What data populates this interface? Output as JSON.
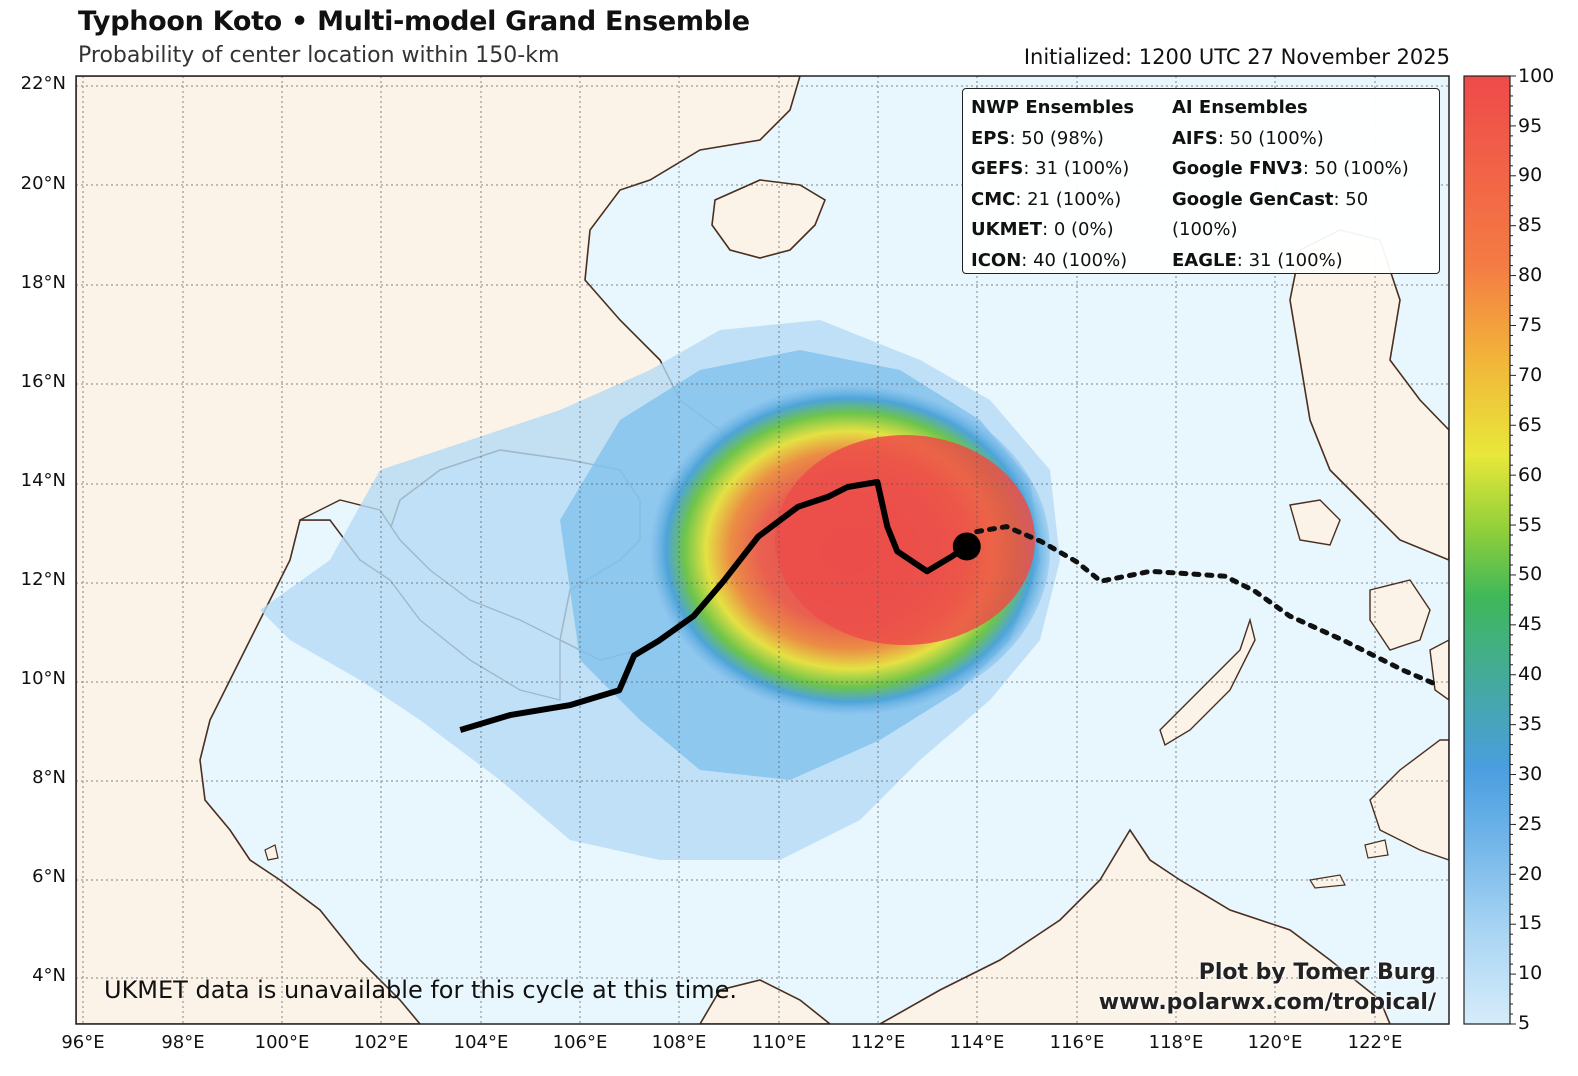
{
  "header": {
    "title": "Typhoon Koto • Multi-model Grand Ensemble",
    "subtitle": "Probability of center location within 150-km",
    "initialized": "Initialized: 1200 UTC 27 November 2025"
  },
  "map": {
    "lon_range": [
      96,
      123.5
    ],
    "lat_range": [
      3,
      22
    ],
    "lat_ticks": [
      "4°N",
      "6°N",
      "8°N",
      "10°N",
      "12°N",
      "14°N",
      "16°N",
      "18°N",
      "20°N",
      "22°N"
    ],
    "lon_ticks": [
      "96°E",
      "98°E",
      "100°E",
      "102°E",
      "104°E",
      "106°E",
      "108°E",
      "110°E",
      "112°E",
      "114°E",
      "116°E",
      "118°E",
      "120°E",
      "122°E"
    ],
    "ocean_color": "#e8f6fd",
    "land_color": "#fbf3e8",
    "coast_color": "#4a2e1f",
    "storm_position": {
      "lon": 113.8,
      "lat": 12.7
    },
    "mean_track": [
      {
        "lon": 113.8,
        "lat": 12.7
      },
      {
        "lon": 113.5,
        "lat": 12.5
      },
      {
        "lon": 113.0,
        "lat": 12.2
      },
      {
        "lon": 112.4,
        "lat": 12.6
      },
      {
        "lon": 112.2,
        "lat": 13.1
      },
      {
        "lon": 112.0,
        "lat": 14.0
      },
      {
        "lon": 111.4,
        "lat": 13.9
      },
      {
        "lon": 111.0,
        "lat": 13.7
      },
      {
        "lon": 110.4,
        "lat": 13.5
      },
      {
        "lon": 110.0,
        "lat": 13.2
      },
      {
        "lon": 109.6,
        "lat": 12.9
      },
      {
        "lon": 108.9,
        "lat": 12.0
      },
      {
        "lon": 108.3,
        "lat": 11.3
      },
      {
        "lon": 107.6,
        "lat": 10.8
      },
      {
        "lon": 107.1,
        "lat": 10.5
      },
      {
        "lon": 106.8,
        "lat": 9.8
      },
      {
        "lon": 105.8,
        "lat": 9.5
      },
      {
        "lon": 104.6,
        "lat": 9.3
      },
      {
        "lon": 103.6,
        "lat": 9.0
      }
    ],
    "past_track": [
      {
        "lon": 114.0,
        "lat": 13.0
      },
      {
        "lon": 114.6,
        "lat": 13.1
      },
      {
        "lon": 115.3,
        "lat": 12.8
      },
      {
        "lon": 116.0,
        "lat": 12.4
      },
      {
        "lon": 116.5,
        "lat": 12.0
      },
      {
        "lon": 117.5,
        "lat": 12.2
      },
      {
        "lon": 119.0,
        "lat": 12.1
      },
      {
        "lon": 119.6,
        "lat": 11.8
      },
      {
        "lon": 120.3,
        "lat": 11.3
      },
      {
        "lon": 121.4,
        "lat": 10.8
      },
      {
        "lon": 122.6,
        "lat": 10.2
      },
      {
        "lon": 123.3,
        "lat": 9.9
      }
    ]
  },
  "colorbar": {
    "ticks": [
      "5",
      "10",
      "15",
      "20",
      "25",
      "30",
      "35",
      "40",
      "45",
      "50",
      "55",
      "60",
      "65",
      "70",
      "75",
      "80",
      "85",
      "90",
      "95",
      "100"
    ],
    "colors": [
      "#d6ecfa",
      "#a8d4f3",
      "#6db3e8",
      "#4a9edf",
      "#45a8a6",
      "#3fb85a",
      "#8fcf3a",
      "#e8e83a",
      "#f2b53a",
      "#f47c44",
      "#ef4a4a"
    ]
  },
  "legend": {
    "nwp_title": "NWP Ensembles",
    "ai_title": "AI Ensembles",
    "nwp": [
      {
        "name": "EPS",
        "value": ": 50 (98%)"
      },
      {
        "name": "GEFS",
        "value": ": 31 (100%)"
      },
      {
        "name": "CMC",
        "value": ": 21 (100%)"
      },
      {
        "name": "UKMET",
        "value": ": 0 (0%)"
      },
      {
        "name": "ICON",
        "value": ": 40 (100%)"
      }
    ],
    "ai": [
      {
        "name": "AIFS",
        "value": ": 50 (100%)"
      },
      {
        "name": "Google FNV3",
        "value": ": 50 (100%)"
      },
      {
        "name": "Google GenCast",
        "value": ": 50 (100%)"
      },
      {
        "name": "EAGLE",
        "value": ": 31 (100%)"
      }
    ]
  },
  "footer": {
    "note": "UKMET data is unavailable for this cycle at this time.",
    "credit_line1": "Plot by Tomer Burg",
    "credit_line2": "www.polarwx.com/tropical/"
  }
}
